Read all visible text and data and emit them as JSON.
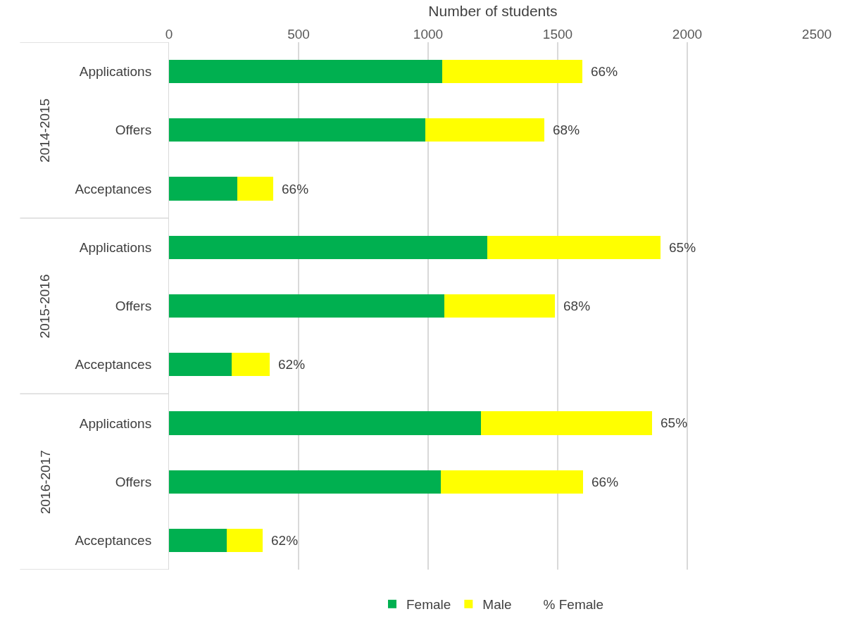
{
  "chart_data": {
    "type": "bar",
    "orientation": "horizontal",
    "stacked": true,
    "xlabel": "Number of students",
    "categories": [
      "Applications",
      "Offers",
      "Acceptances",
      "Applications",
      "Offers",
      "Acceptances",
      "Applications",
      "Offers",
      "Acceptances"
    ],
    "series": [
      {
        "name": "Female",
        "color": "#00b050",
        "values": [
          1054,
          988,
          263,
          1227,
          1062,
          242,
          1203,
          1049,
          223
        ]
      },
      {
        "name": "Male",
        "color": "#ffff00",
        "values": [
          542,
          459,
          138,
          669,
          428,
          146,
          661,
          549,
          138
        ]
      },
      {
        "name": "% Female",
        "values": [
          null,
          null,
          null,
          null,
          null,
          null,
          null,
          null,
          null
        ],
        "value_labels": [
          "66%",
          "68%",
          "66%",
          "65%",
          "68%",
          "62%",
          "65%",
          "66%",
          "62%"
        ]
      }
    ],
    "annotations": [
      "2014-2015",
      "2015-2016",
      "2016-2017"
    ],
    "xlim": [
      0,
      2500
    ],
    "xticks": [
      0,
      500,
      1000,
      1500,
      2000,
      2500
    ],
    "grid": "x",
    "legend": "bottom"
  }
}
